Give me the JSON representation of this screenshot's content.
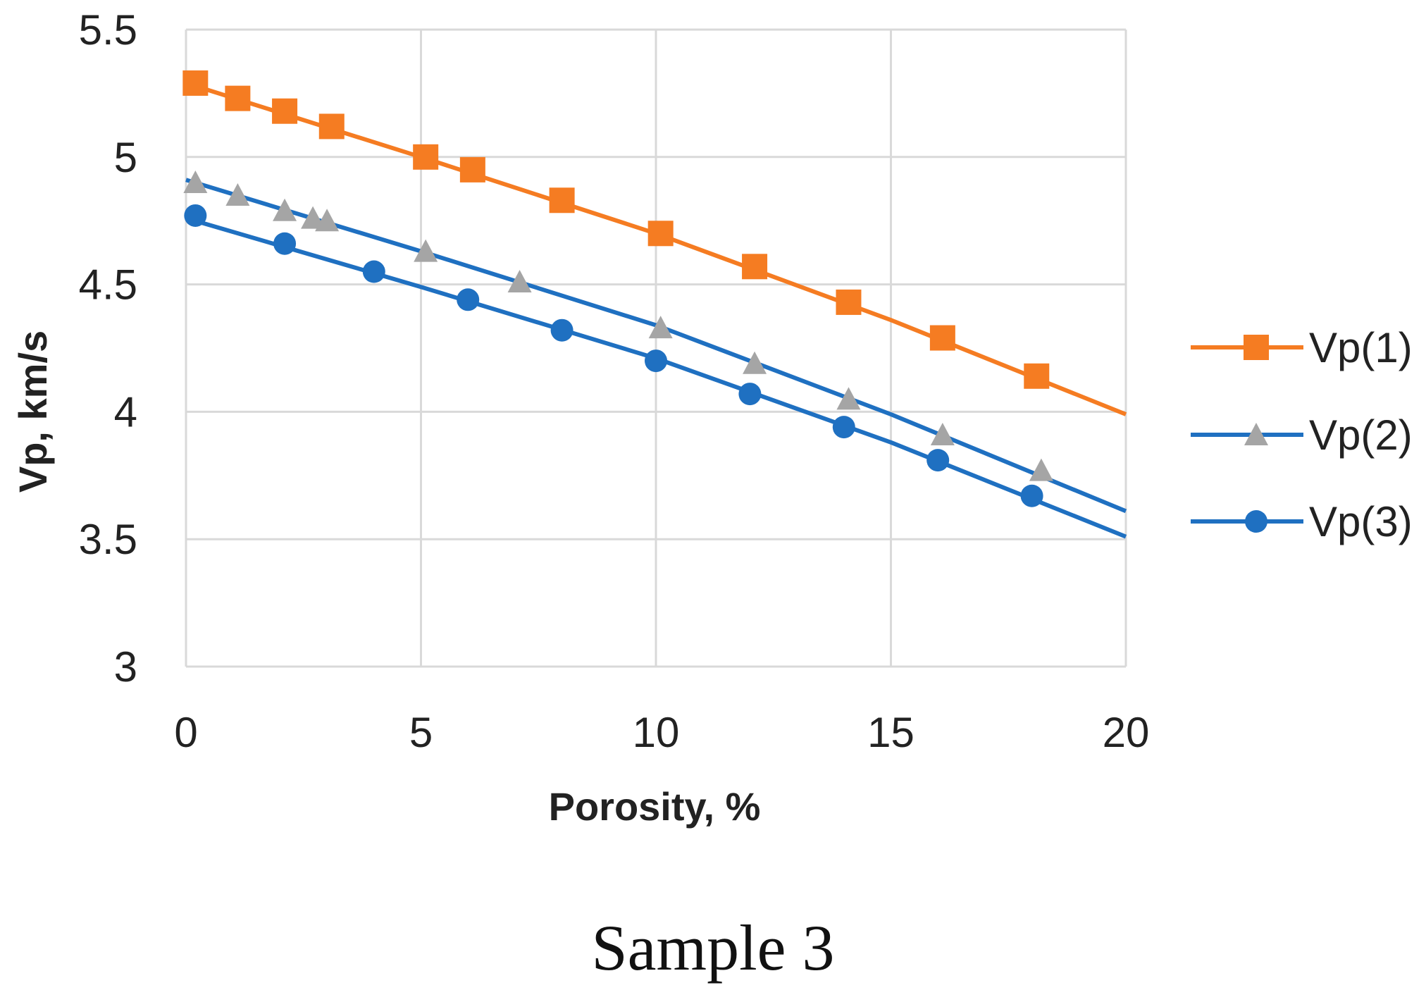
{
  "chart_data": {
    "type": "line",
    "caption": "Sample 3",
    "xlabel": "Porosity, %",
    "ylabel": "Vp, km/s",
    "xlim": [
      0,
      20
    ],
    "ylim": [
      3,
      5.5
    ],
    "xticks": [
      0,
      5,
      10,
      15,
      20
    ],
    "xtick_labels": [
      "0",
      "5",
      "10",
      "15",
      "20"
    ],
    "yticks": [
      3,
      3.5,
      4,
      4.5,
      5,
      5.5
    ],
    "ytick_labels": [
      "3",
      "3.5",
      "4",
      "4.5",
      "5",
      "5.5"
    ],
    "grid": true,
    "legend_position": "right",
    "series": [
      {
        "name": "Vp(1)",
        "color": "#F57C22",
        "marker": "square",
        "line": [
          [
            0,
            5.29
          ],
          [
            5,
            5.0
          ],
          [
            10,
            4.7
          ],
          [
            15,
            4.36
          ],
          [
            20,
            3.99
          ]
        ],
        "points": [
          [
            0.2,
            5.29
          ],
          [
            1.1,
            5.23
          ],
          [
            2.1,
            5.18
          ],
          [
            3.1,
            5.12
          ],
          [
            5.1,
            5.0
          ],
          [
            6.1,
            4.95
          ],
          [
            8.0,
            4.83
          ],
          [
            10.1,
            4.7
          ],
          [
            12.1,
            4.57
          ],
          [
            14.1,
            4.43
          ],
          [
            16.1,
            4.29
          ],
          [
            18.1,
            4.14
          ]
        ]
      },
      {
        "name": "Vp(2)",
        "color": "#1F70C1",
        "marker_color": "#A5A5A5",
        "marker": "triangle",
        "line": [
          [
            0,
            4.91
          ],
          [
            5,
            4.63
          ],
          [
            10,
            4.34
          ],
          [
            15,
            3.99
          ],
          [
            20,
            3.61
          ]
        ],
        "points": [
          [
            0.2,
            4.9
          ],
          [
            1.1,
            4.85
          ],
          [
            2.1,
            4.79
          ],
          [
            2.7,
            4.76
          ],
          [
            3.0,
            4.75
          ],
          [
            5.1,
            4.63
          ],
          [
            7.1,
            4.51
          ],
          [
            10.1,
            4.33
          ],
          [
            12.1,
            4.19
          ],
          [
            14.1,
            4.05
          ],
          [
            16.1,
            3.91
          ],
          [
            18.2,
            3.77
          ]
        ]
      },
      {
        "name": "Vp(3)",
        "color": "#1F70C1",
        "marker": "circle",
        "line": [
          [
            0,
            4.76
          ],
          [
            5,
            4.49
          ],
          [
            10,
            4.21
          ],
          [
            15,
            3.88
          ],
          [
            20,
            3.51
          ]
        ],
        "points": [
          [
            0.2,
            4.77
          ],
          [
            2.1,
            4.66
          ],
          [
            4.0,
            4.55
          ],
          [
            6.0,
            4.44
          ],
          [
            8.0,
            4.32
          ],
          [
            10.0,
            4.2
          ],
          [
            12.0,
            4.07
          ],
          [
            14.0,
            3.94
          ],
          [
            16.0,
            3.81
          ],
          [
            18.0,
            3.67
          ]
        ]
      }
    ]
  }
}
